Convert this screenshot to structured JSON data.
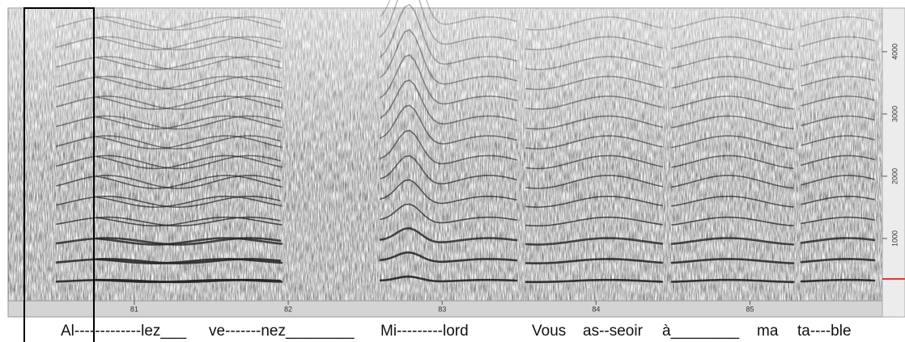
{
  "chart_data": {
    "type": "spectrogram",
    "xlim": [
      80.18,
      85.86
    ],
    "xticks": [
      81,
      82,
      83,
      84,
      85
    ],
    "ylim": [
      0,
      4700
    ],
    "yticks": [
      1000,
      2000,
      3000,
      4000
    ],
    "lyrics": [
      "Al-------------lez___",
      "ve-------nez________",
      "Mi---------lord",
      "Vous",
      "as--seoir",
      "à________",
      "ma",
      "ta----ble"
    ]
  }
}
